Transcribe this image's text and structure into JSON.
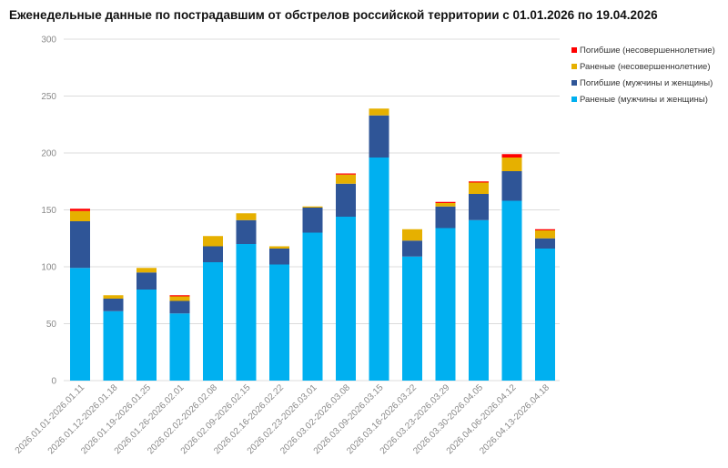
{
  "chart_data": {
    "type": "bar",
    "stacked": true,
    "title": "Еженедельные данные по пострадавшим от обстрелов российской территории с 01.01.2026 по 19.04.2026",
    "xlabel": "",
    "ylabel": "",
    "ylim": [
      0,
      300
    ],
    "yticks": [
      0,
      50,
      100,
      150,
      200,
      250,
      300
    ],
    "grid": true,
    "legend_position": "top-right",
    "categories": [
      "2026.01.01-2026.01.11",
      "2026.01.12-2026.01.18",
      "2026.01.19-2026.01.25",
      "2026.01.26-2026.02.01",
      "2026.02.02-2026.02.08",
      "2026.02.09-2026.02.15",
      "2026.02.16-2026.02.22",
      "2026.02.23-2026.03.01",
      "2026.03.02-2026.03.08",
      "2026.03.09-2026.03.15",
      "2026.03.16-2026.03.22",
      "2026.03.23-2026.03.29",
      "2026.03.30-2026.04.05",
      "2026.04.06-2026.04.12",
      "2026.04.13-2026.04.18"
    ],
    "series": [
      {
        "name": "Раненые (мужчины и женщины)",
        "color": "#00b0f0",
        "values": [
          99,
          61,
          80,
          59,
          104,
          120,
          102,
          130,
          144,
          196,
          109,
          134,
          141,
          158,
          116
        ]
      },
      {
        "name": "Погибшие (мужчины и женщины)",
        "color": "#2f5597",
        "values": [
          41,
          11,
          15,
          11,
          14,
          21,
          14,
          22,
          29,
          37,
          14,
          19,
          23,
          26,
          9
        ]
      },
      {
        "name": "Раненые (несовершеннолетние)",
        "color": "#e6b000",
        "values": [
          9,
          3,
          4,
          4,
          9,
          6,
          2,
          1,
          8,
          6,
          10,
          3,
          10,
          12,
          7
        ]
      },
      {
        "name": "Погибшие (несовершеннолетние)",
        "color": "#ff0000",
        "values": [
          2,
          0,
          0,
          1,
          0,
          0,
          0,
          0,
          1,
          0,
          0,
          1,
          1,
          3,
          1
        ]
      }
    ],
    "legend_order": [
      3,
      2,
      1,
      0
    ]
  }
}
